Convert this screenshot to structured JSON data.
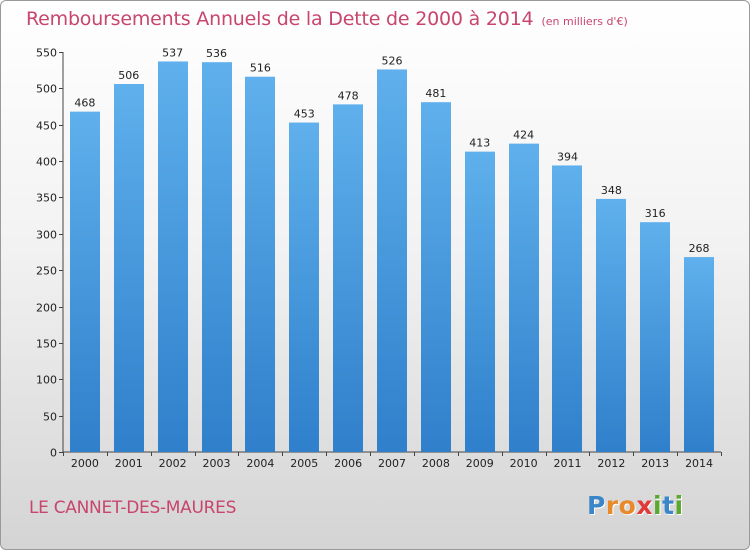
{
  "header": {
    "title": "Remboursements Annuels de la Dette de 2000 à 2014",
    "unit": "(en milliers d'€)"
  },
  "footer": {
    "commune": "LE CANNET-DES-MAURES"
  },
  "logo": {
    "letters": [
      "P",
      "r",
      "o",
      "x",
      "i",
      "t",
      "i"
    ],
    "colors": [
      "#3a86c8",
      "#e8892a",
      "#e8892a",
      "#e03a3a",
      "#5aa82e",
      "#3a86c8",
      "#5aa82e"
    ]
  },
  "colors": {
    "bar_top": "#5fb0ec",
    "bar_bottom": "#2f7fcb",
    "title": "#c8456e"
  },
  "chart_data": {
    "type": "bar",
    "categories": [
      "2000",
      "2001",
      "2002",
      "2003",
      "2004",
      "2005",
      "2006",
      "2007",
      "2008",
      "2009",
      "2010",
      "2011",
      "2012",
      "2013",
      "2014"
    ],
    "values": [
      468,
      506,
      537,
      536,
      516,
      453,
      478,
      526,
      481,
      413,
      424,
      394,
      348,
      316,
      268
    ],
    "yticks": [
      0,
      50,
      100,
      150,
      200,
      250,
      300,
      350,
      400,
      450,
      500,
      550
    ],
    "ylim": [
      0,
      550
    ],
    "grid": false,
    "data_labels": true
  }
}
